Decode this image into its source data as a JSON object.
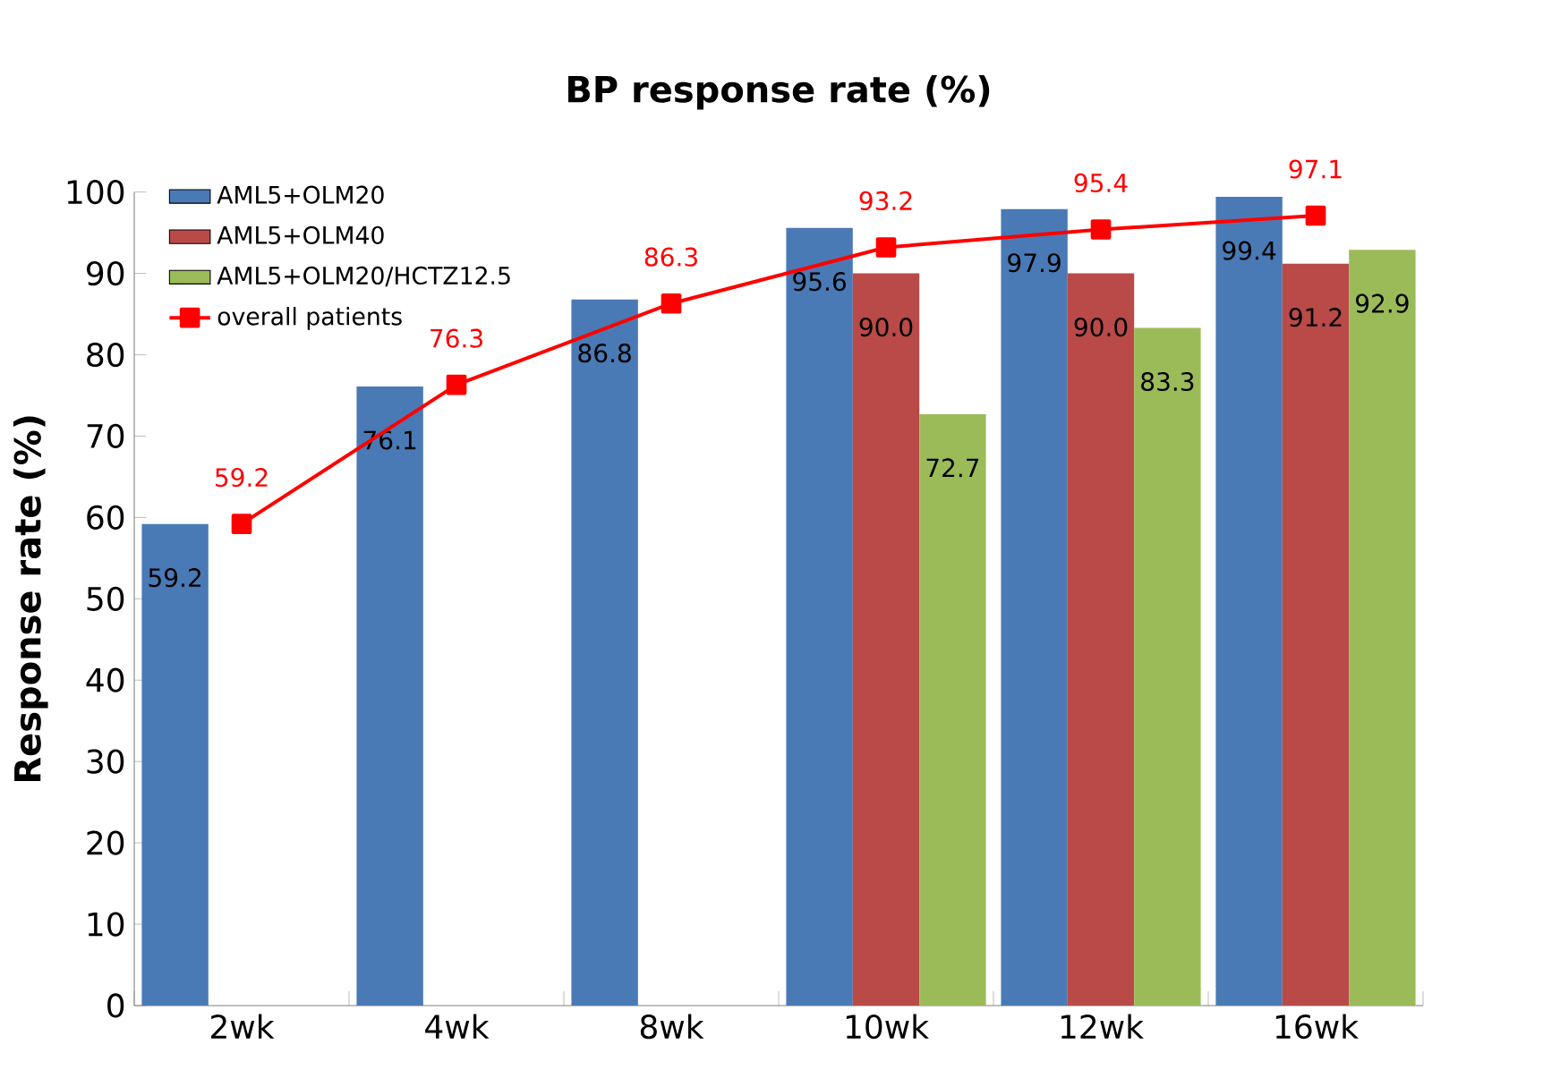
{
  "chart_data": {
    "type": "bar",
    "title": "BP response rate (%)",
    "ylabel": "Response rate (%)",
    "categories": [
      "2wk",
      "4wk",
      "8wk",
      "10wk",
      "12wk",
      "16wk"
    ],
    "series": [
      {
        "name": "AML5+OLM20",
        "color": "#4a7ab5",
        "values": [
          59.2,
          76.1,
          86.8,
          95.6,
          97.9,
          99.4
        ],
        "value_labels": [
          "59.2",
          "76.1",
          "86.8",
          "95.6",
          "97.9",
          "99.4"
        ]
      },
      {
        "name": "AML5+OLM40",
        "color": "#b94a48",
        "values": [
          null,
          null,
          null,
          90.0,
          90.0,
          91.2
        ],
        "value_labels": [
          null,
          null,
          null,
          "90.0",
          "90.0",
          "91.2"
        ]
      },
      {
        "name": "AML5+OLM20/HCTZ12.5",
        "color": "#9bbb59",
        "values": [
          null,
          null,
          null,
          72.7,
          83.3,
          92.9
        ],
        "value_labels": [
          null,
          null,
          null,
          "72.7",
          "83.3",
          "92.9"
        ]
      },
      {
        "name": "overall patients",
        "color": "#ff0000",
        "type": "line",
        "values": [
          59.2,
          76.3,
          86.3,
          93.2,
          95.4,
          97.1
        ],
        "value_labels": [
          "59.2",
          "76.3",
          "86.3",
          "93.2",
          "95.4",
          "97.1"
        ]
      }
    ],
    "ylim": [
      0,
      100
    ],
    "yticks": [
      0,
      10,
      20,
      30,
      40,
      50,
      60,
      70,
      80,
      90,
      100
    ],
    "grid": false,
    "legend": "top left",
    "marker": "square",
    "line_style": "solid"
  }
}
